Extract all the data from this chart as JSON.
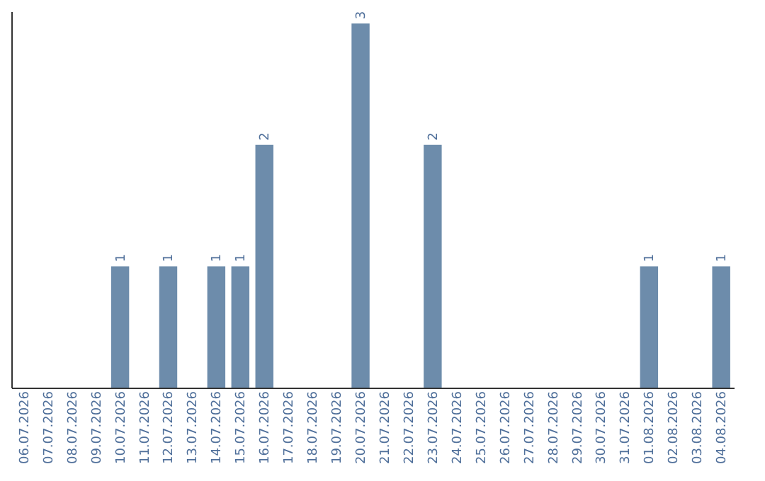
{
  "chart_data": {
    "type": "bar",
    "categories": [
      "06.07.2026",
      "07.07.2026",
      "08.07.2026",
      "09.07.2026",
      "10.07.2026",
      "11.07.2026",
      "12.07.2026",
      "13.07.2026",
      "14.07.2026",
      "15.07.2026",
      "16.07.2026",
      "17.07.2026",
      "18.07.2026",
      "19.07.2026",
      "20.07.2026",
      "21.07.2026",
      "22.07.2026",
      "23.07.2026",
      "24.07.2026",
      "25.07.2026",
      "26.07.2026",
      "27.07.2026",
      "28.07.2026",
      "29.07.2026",
      "30.07.2026",
      "31.07.2026",
      "01.08.2026",
      "02.08.2026",
      "03.08.2026",
      "04.08.2026"
    ],
    "values": [
      0,
      0,
      0,
      0,
      1,
      0,
      1,
      0,
      1,
      1,
      2,
      0,
      0,
      0,
      3,
      0,
      0,
      2,
      0,
      0,
      0,
      0,
      0,
      0,
      0,
      0,
      1,
      0,
      0,
      1
    ],
    "value_labels": [
      null,
      null,
      null,
      null,
      "1",
      null,
      "1",
      null,
      "1",
      "1",
      "2",
      null,
      null,
      null,
      "3",
      null,
      null,
      "2",
      null,
      null,
      null,
      null,
      null,
      null,
      null,
      null,
      "1",
      null,
      null,
      "1"
    ],
    "color": "#6d8cab",
    "ylim": [
      0,
      3.1
    ],
    "tick_labels": "x",
    "grid": false
  }
}
